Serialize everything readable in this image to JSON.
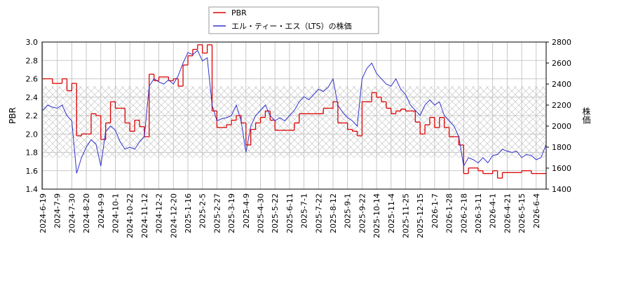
{
  "chart_data": {
    "type": "line",
    "x": [
      "2024-6-19",
      null,
      null,
      "2024-7-9",
      null,
      null,
      "2024-7-30",
      null,
      null,
      "2024-8-20",
      null,
      null,
      "2024-9-9",
      null,
      null,
      "2024-10-1",
      null,
      null,
      "2024-10-22",
      null,
      null,
      "2024-11-12",
      null,
      null,
      "2024-12-2",
      null,
      null,
      "2024-12-20",
      null,
      null,
      "2025-1-16",
      null,
      null,
      "2025-2-5",
      null,
      null,
      "2025-2-27",
      null,
      null,
      "2025-3-19",
      null,
      null,
      "2025-4-9",
      null,
      null,
      "2025-4-30",
      null,
      null,
      "2025-5-22",
      null,
      null,
      "2025-6-11",
      null,
      null,
      "2025-7-1",
      null,
      null,
      "2025-7-22",
      null,
      null,
      "2025-8-12",
      null,
      null,
      "2025-9-1",
      null,
      null,
      "2025-9-22",
      null,
      null,
      "2025-10-14",
      null,
      null,
      "2025-11-4",
      null,
      null,
      "2025-11-25",
      null,
      null,
      "2025-12-15",
      null,
      null,
      "2026-1-7",
      null,
      null,
      "2026-1-28",
      null,
      null,
      "2026-2-18",
      null,
      null,
      "2026-3-11",
      null,
      null,
      "2026-4-1",
      null,
      null,
      "2026-4-21",
      null,
      null,
      "2026-5-15",
      null,
      null,
      "2026-6-4",
      null,
      null
    ],
    "y_label": "PBR",
    "y2_label": "株価",
    "ylim": [
      1.4,
      3.0
    ],
    "yticks": [
      1.4,
      1.6,
      1.8,
      {
        "value": 2,
        "label": "2.0"
      },
      2.2,
      2.4,
      2.6,
      2.8,
      {
        "value": 3,
        "label": "3.0"
      }
    ],
    "y2lim": [
      1400,
      2800
    ],
    "y2ticks": [
      1400,
      1600,
      1800,
      2000,
      2200,
      2400,
      2600,
      2800
    ],
    "grid": true,
    "series": [
      {
        "name": "PBR",
        "color": "#dd0000",
        "drawstyle": "steps-post",
        "values": [
          2.6,
          2.6,
          2.55,
          2.55,
          2.6,
          2.47,
          2.55,
          1.98,
          2.0,
          2.0,
          2.22,
          2.2,
          1.94,
          2.12,
          2.35,
          2.28,
          2.28,
          2.12,
          2.03,
          2.15,
          2.08,
          1.97,
          2.65,
          2.58,
          2.62,
          2.62,
          2.58,
          2.6,
          2.52,
          2.75,
          2.85,
          2.92,
          2.97,
          2.88,
          2.97,
          2.25,
          2.07,
          2.07,
          2.1,
          2.15,
          2.2,
          2.12,
          1.88,
          2.05,
          2.12,
          2.18,
          2.25,
          2.15,
          2.04,
          2.04,
          2.04,
          2.04,
          2.12,
          2.22,
          2.22,
          2.22,
          2.22,
          2.22,
          2.28,
          2.28,
          2.35,
          2.12,
          2.12,
          2.05,
          2.03,
          1.98,
          2.35,
          2.35,
          2.45,
          2.4,
          2.35,
          2.28,
          2.22,
          2.25,
          2.27,
          2.25,
          2.25,
          2.13,
          2.0,
          2.1,
          2.18,
          2.07,
          2.18,
          2.07,
          1.97,
          1.97,
          1.88,
          1.57,
          1.63,
          1.63,
          1.6,
          1.57,
          1.57,
          1.6,
          1.52,
          1.58,
          1.58,
          1.58,
          1.58,
          1.6,
          1.6,
          1.57,
          1.57,
          1.57,
          1.57
        ]
      },
      {
        "name": "エル・ティー・エス（LTS）の株価",
        "color": "#3333cc",
        "axis": "y2",
        "values": [
          2150,
          2200,
          2180,
          2170,
          2200,
          2100,
          2050,
          1550,
          1700,
          1800,
          1870,
          1830,
          1620,
          1950,
          2000,
          1960,
          1850,
          1780,
          1800,
          1780,
          1850,
          1900,
          2380,
          2450,
          2420,
          2400,
          2440,
          2400,
          2480,
          2600,
          2700,
          2680,
          2720,
          2620,
          2650,
          2200,
          2050,
          2070,
          2080,
          2100,
          2200,
          2050,
          1750,
          2000,
          2100,
          2150,
          2200,
          2100,
          2050,
          2080,
          2050,
          2100,
          2150,
          2230,
          2280,
          2250,
          2300,
          2350,
          2330,
          2370,
          2450,
          2200,
          2130,
          2080,
          2050,
          2000,
          2450,
          2550,
          2600,
          2500,
          2450,
          2400,
          2380,
          2450,
          2350,
          2300,
          2200,
          2150,
          2100,
          2200,
          2250,
          2200,
          2230,
          2100,
          2050,
          2000,
          1900,
          1620,
          1700,
          1680,
          1650,
          1700,
          1650,
          1720,
          1730,
          1780,
          1760,
          1750,
          1760,
          1700,
          1730,
          1720,
          1680,
          1700,
          1820
        ]
      }
    ]
  }
}
